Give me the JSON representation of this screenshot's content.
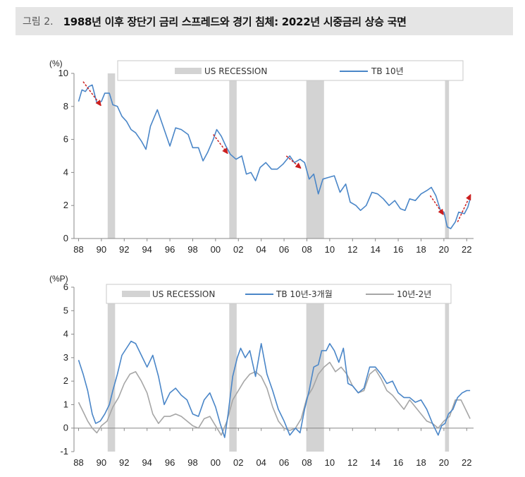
{
  "title": {
    "prefix": "그림 2.",
    "text": "1988년 이후 장단기 금리 스프레드와 경기 침체: 2022년 시중금리 상승 국면"
  },
  "colors": {
    "recession": "#d3d3d3",
    "tb": "#4a86c8",
    "spread2": "#a6a6a6",
    "arrow": "#cc1f1f"
  },
  "chart_data": [
    {
      "type": "line",
      "unit_label": "(%)",
      "ylim": [
        0,
        10
      ],
      "yticks": [
        0,
        2,
        4,
        6,
        8,
        10
      ],
      "xlim": [
        1987.6,
        2022.6
      ],
      "xticks": [
        "88",
        "90",
        "92",
        "94",
        "96",
        "98",
        "00",
        "02",
        "04",
        "06",
        "08",
        "10",
        "12",
        "14",
        "16",
        "18",
        "20",
        "22"
      ],
      "legend": [
        "US RECESSION",
        "TB 10년"
      ],
      "recessions": [
        [
          1990.55,
          1991.2
        ],
        [
          2001.2,
          2001.85
        ],
        [
          2007.95,
          2009.5
        ],
        [
          2020.1,
          2020.45
        ]
      ],
      "series": [
        {
          "name": "TB 10년",
          "x": [
            1988.0,
            1988.3,
            1988.6,
            1988.9,
            1989.2,
            1989.6,
            1990.0,
            1990.3,
            1990.7,
            1991.0,
            1991.4,
            1991.8,
            1992.2,
            1992.6,
            1993.0,
            1993.5,
            1993.9,
            1994.3,
            1994.9,
            1995.4,
            1996.0,
            1996.5,
            1997.0,
            1997.6,
            1998.0,
            1998.5,
            1998.9,
            1999.3,
            1999.8,
            2000.1,
            2000.5,
            2000.9,
            2001.3,
            2001.8,
            2002.3,
            2002.7,
            2003.1,
            2003.5,
            2003.9,
            2004.4,
            2004.9,
            2005.4,
            2005.9,
            2006.5,
            2006.9,
            2007.4,
            2007.8,
            2008.2,
            2008.6,
            2009.0,
            2009.4,
            2009.9,
            2010.4,
            2010.9,
            2011.4,
            2011.8,
            2012.3,
            2012.7,
            2013.2,
            2013.7,
            2014.2,
            2014.7,
            2015.2,
            2015.7,
            2016.2,
            2016.6,
            2017.0,
            2017.5,
            2018.0,
            2018.5,
            2018.9,
            2019.3,
            2019.7,
            2020.0,
            2020.3,
            2020.6,
            2021.0,
            2021.3,
            2021.8,
            2022.1,
            2022.3
          ],
          "values": [
            8.3,
            9.0,
            8.9,
            9.2,
            9.3,
            8.2,
            8.3,
            8.8,
            8.8,
            8.1,
            8.0,
            7.4,
            7.1,
            6.6,
            6.4,
            5.9,
            5.4,
            6.8,
            7.8,
            6.8,
            5.6,
            6.7,
            6.6,
            6.3,
            5.5,
            5.5,
            4.7,
            5.2,
            6.0,
            6.6,
            6.2,
            5.6,
            5.1,
            4.8,
            5.0,
            3.9,
            4.0,
            3.5,
            4.3,
            4.6,
            4.2,
            4.2,
            4.5,
            5.0,
            4.6,
            4.8,
            4.6,
            3.6,
            3.9,
            2.7,
            3.6,
            3.7,
            3.8,
            2.8,
            3.3,
            2.2,
            2.0,
            1.7,
            2.0,
            2.8,
            2.7,
            2.4,
            2.0,
            2.3,
            1.8,
            1.7,
            2.4,
            2.3,
            2.7,
            2.9,
            3.1,
            2.6,
            1.7,
            1.6,
            0.7,
            0.6,
            1.0,
            1.6,
            1.5,
            1.9,
            2.4
          ]
        }
      ],
      "annotations": [
        {
          "from": [
            1988.4,
            9.5
          ],
          "to": [
            1989.9,
            8.1
          ]
        },
        {
          "from": [
            1999.8,
            6.3
          ],
          "to": [
            2001.0,
            5.2
          ]
        },
        {
          "from": [
            2006.2,
            5.0
          ],
          "to": [
            2007.4,
            4.3
          ]
        },
        {
          "from": [
            2018.8,
            2.6
          ],
          "to": [
            2019.9,
            1.5
          ]
        },
        {
          "from": [
            2021.2,
            1.0
          ],
          "to": [
            2022.3,
            2.6
          ]
        }
      ]
    },
    {
      "type": "line",
      "unit_label": "(%P)",
      "ylim": [
        -1,
        6
      ],
      "yticks": [
        -1,
        0,
        1,
        2,
        3,
        4,
        5,
        6
      ],
      "xlim": [
        1987.6,
        2022.6
      ],
      "xticks": [
        "88",
        "90",
        "92",
        "94",
        "96",
        "98",
        "00",
        "02",
        "04",
        "06",
        "08",
        "10",
        "12",
        "14",
        "16",
        "18",
        "20",
        "22"
      ],
      "legend": [
        "US RECESSION",
        "TB 10년-3개월",
        "10년-2년"
      ],
      "recessions": [
        [
          1990.55,
          1991.2
        ],
        [
          2001.2,
          2001.85
        ],
        [
          2007.95,
          2009.5
        ],
        [
          2020.1,
          2020.45
        ]
      ],
      "series": [
        {
          "name": "TB 10년-3개월",
          "x": [
            1988.0,
            1988.4,
            1988.8,
            1989.2,
            1989.5,
            1989.9,
            1990.3,
            1990.7,
            1991.0,
            1991.4,
            1991.8,
            1992.2,
            1992.6,
            1993.0,
            1993.5,
            1994.0,
            1994.5,
            1995.0,
            1995.5,
            1996.0,
            1996.5,
            1997.0,
            1997.5,
            1998.0,
            1998.5,
            1999.0,
            1999.5,
            2000.0,
            2000.4,
            2000.8,
            2001.1,
            2001.5,
            2001.9,
            2002.2,
            2002.6,
            2003.0,
            2003.5,
            2004.0,
            2004.5,
            2005.0,
            2005.5,
            2006.0,
            2006.5,
            2007.0,
            2007.4,
            2007.8,
            2008.2,
            2008.6,
            2009.0,
            2009.3,
            2009.7,
            2010.0,
            2010.4,
            2010.8,
            2011.2,
            2011.6,
            2012.0,
            2012.5,
            2013.0,
            2013.5,
            2014.0,
            2014.5,
            2015.0,
            2015.5,
            2016.0,
            2016.5,
            2017.0,
            2017.5,
            2018.0,
            2018.5,
            2019.0,
            2019.5,
            2019.8,
            2020.1,
            2020.4,
            2020.8,
            2021.2,
            2021.6,
            2022.0,
            2022.3
          ],
          "values": [
            2.9,
            2.3,
            1.6,
            0.6,
            0.2,
            0.3,
            0.6,
            1.0,
            1.6,
            2.3,
            3.1,
            3.4,
            3.7,
            3.6,
            3.1,
            2.6,
            3.1,
            2.2,
            1.0,
            1.5,
            1.7,
            1.4,
            1.2,
            0.6,
            0.5,
            1.2,
            1.5,
            0.9,
            0.2,
            -0.4,
            0.6,
            2.2,
            3.0,
            3.4,
            3.0,
            3.3,
            2.2,
            3.6,
            2.3,
            1.6,
            0.8,
            0.3,
            -0.3,
            0.0,
            -0.2,
            0.8,
            1.6,
            2.6,
            2.7,
            3.3,
            3.3,
            3.6,
            3.3,
            2.8,
            3.4,
            1.9,
            1.8,
            1.5,
            1.7,
            2.6,
            2.6,
            2.3,
            1.9,
            2.0,
            1.5,
            1.3,
            1.3,
            1.1,
            1.2,
            0.8,
            0.2,
            -0.3,
            0.1,
            0.2,
            0.6,
            0.8,
            1.3,
            1.5,
            1.6,
            1.6
          ]
        },
        {
          "name": "10년-2년",
          "x": [
            1988.0,
            1988.4,
            1988.8,
            1989.2,
            1989.6,
            1990.0,
            1990.5,
            1991.0,
            1991.5,
            1992.0,
            1992.5,
            1993.0,
            1993.5,
            1994.0,
            1994.5,
            1995.0,
            1995.5,
            1996.0,
            1996.5,
            1997.0,
            1997.5,
            1998.0,
            1998.5,
            1999.0,
            1999.5,
            2000.0,
            2000.5,
            2001.0,
            2001.5,
            2002.0,
            2002.5,
            2003.0,
            2003.5,
            2004.0,
            2004.5,
            2005.0,
            2005.5,
            2006.0,
            2006.5,
            2007.0,
            2007.5,
            2008.0,
            2008.5,
            2009.0,
            2009.5,
            2010.0,
            2010.5,
            2011.0,
            2011.5,
            2012.0,
            2012.5,
            2013.0,
            2013.5,
            2014.0,
            2014.5,
            2015.0,
            2015.5,
            2016.0,
            2016.5,
            2017.0,
            2017.5,
            2018.0,
            2018.5,
            2019.0,
            2019.5,
            2020.0,
            2020.5,
            2021.0,
            2021.5,
            2022.0,
            2022.3
          ],
          "values": [
            1.1,
            0.7,
            0.3,
            0.0,
            -0.2,
            0.1,
            0.3,
            0.9,
            1.3,
            1.9,
            2.3,
            2.4,
            2.0,
            1.5,
            0.6,
            0.2,
            0.5,
            0.5,
            0.6,
            0.5,
            0.3,
            0.1,
            0.0,
            0.4,
            0.5,
            0.1,
            -0.3,
            0.3,
            1.2,
            1.6,
            2.0,
            2.3,
            2.4,
            2.2,
            1.7,
            0.9,
            0.3,
            0.0,
            -0.1,
            0.0,
            0.4,
            1.3,
            1.7,
            2.3,
            2.6,
            2.8,
            2.4,
            2.6,
            2.3,
            1.8,
            1.5,
            1.6,
            2.3,
            2.5,
            2.1,
            1.6,
            1.4,
            1.1,
            0.8,
            1.2,
            0.9,
            0.6,
            0.3,
            0.2,
            0.0,
            0.3,
            0.5,
            1.2,
            1.2,
            0.7,
            0.4
          ]
        }
      ]
    }
  ]
}
